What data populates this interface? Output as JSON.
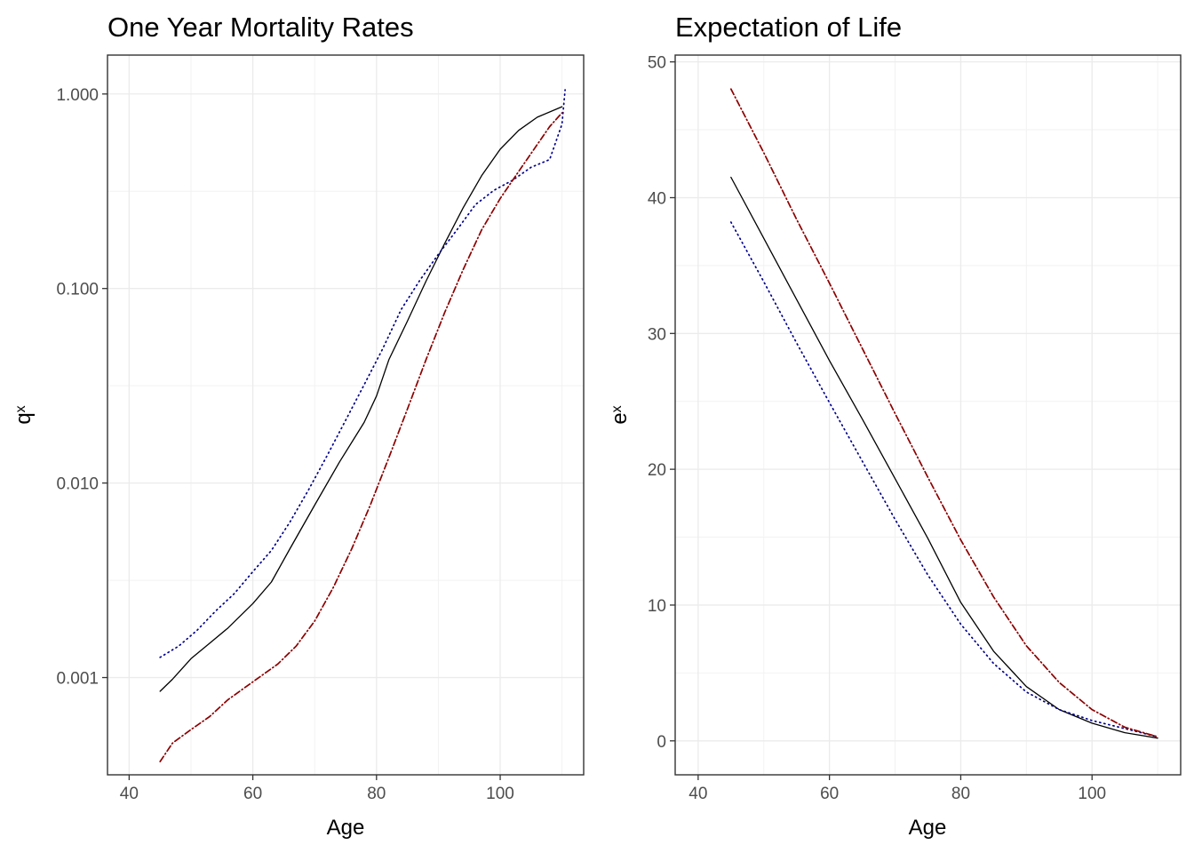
{
  "chart_data": [
    {
      "type": "line",
      "title": "One Year Mortality Rates",
      "xlabel": "Age",
      "ylabel": {
        "base": "q",
        "sub": "x"
      },
      "xlim": [
        36.5,
        113.5
      ],
      "ylim_log10": [
        -3.5,
        0.2
      ],
      "y_scale": "log10",
      "grid": true,
      "x_ticks": [
        {
          "value": 40,
          "label": "40"
        },
        {
          "value": 60,
          "label": "60"
        },
        {
          "value": 80,
          "label": "80"
        },
        {
          "value": 100,
          "label": "100"
        }
      ],
      "y_ticks": [
        {
          "value": 0.001,
          "label": "0.001"
        },
        {
          "value": 0.01,
          "label": "0.010"
        },
        {
          "value": 0.1,
          "label": "0.100"
        },
        {
          "value": 1.0,
          "label": "1.000"
        }
      ],
      "series": [
        {
          "color": "#000000",
          "dash": "solid",
          "points": [
            [
              45,
              0.00085
            ],
            [
              47,
              0.00098
            ],
            [
              50,
              0.00125
            ],
            [
              53,
              0.0015
            ],
            [
              56,
              0.0018
            ],
            [
              60,
              0.0024
            ],
            [
              63,
              0.0031
            ],
            [
              66,
              0.0046
            ],
            [
              70,
              0.0077
            ],
            [
              74,
              0.0128
            ],
            [
              78,
              0.0205
            ],
            [
              80,
              0.028
            ],
            [
              82,
              0.043
            ],
            [
              85,
              0.068
            ],
            [
              88,
              0.109
            ],
            [
              91,
              0.17
            ],
            [
              94,
              0.26
            ],
            [
              97,
              0.38
            ],
            [
              100,
              0.52
            ],
            [
              103,
              0.65
            ],
            [
              106,
              0.76
            ],
            [
              110,
              0.86
            ]
          ]
        },
        {
          "color": "#00008b",
          "dash": "dotted",
          "points": [
            [
              45,
              0.00127
            ],
            [
              48,
              0.00145
            ],
            [
              51,
              0.00175
            ],
            [
              54,
              0.0022
            ],
            [
              57,
              0.0027
            ],
            [
              60,
              0.0035
            ],
            [
              63,
              0.0045
            ],
            [
              66,
              0.0063
            ],
            [
              69,
              0.0092
            ],
            [
              72,
              0.0138
            ],
            [
              75,
              0.021
            ],
            [
              78,
              0.032
            ],
            [
              81,
              0.049
            ],
            [
              84,
              0.078
            ],
            [
              87,
              0.11
            ],
            [
              90,
              0.15
            ],
            [
              93,
              0.2
            ],
            [
              96,
              0.27
            ],
            [
              99,
              0.32
            ],
            [
              102,
              0.36
            ],
            [
              105,
              0.42
            ],
            [
              108,
              0.46
            ],
            [
              110,
              0.7
            ],
            [
              110.5,
              1.05
            ]
          ]
        },
        {
          "color": "#8b0000",
          "dash": "dashdot",
          "points": [
            [
              45,
              0.00037
            ],
            [
              47,
              0.00046
            ],
            [
              50,
              0.00054
            ],
            [
              53,
              0.00063
            ],
            [
              56,
              0.00077
            ],
            [
              60,
              0.00095
            ],
            [
              64,
              0.00117
            ],
            [
              67,
              0.00145
            ],
            [
              70,
              0.00195
            ],
            [
              73,
              0.0029
            ],
            [
              76,
              0.0046
            ],
            [
              79,
              0.0077
            ],
            [
              82,
              0.0135
            ],
            [
              85,
              0.024
            ],
            [
              88,
              0.043
            ],
            [
              91,
              0.075
            ],
            [
              94,
              0.125
            ],
            [
              97,
              0.2
            ],
            [
              100,
              0.29
            ],
            [
              103,
              0.4
            ],
            [
              106,
              0.55
            ],
            [
              108,
              0.68
            ],
            [
              110,
              0.8
            ]
          ]
        }
      ]
    },
    {
      "type": "line",
      "title": "Expectation of Life",
      "xlabel": "Age",
      "ylabel": {
        "base": "e",
        "sub": "x"
      },
      "xlim": [
        36.5,
        113.5
      ],
      "ylim": [
        -2.5,
        50.5
      ],
      "y_scale": "linear",
      "grid": true,
      "x_ticks": [
        {
          "value": 40,
          "label": "40"
        },
        {
          "value": 60,
          "label": "60"
        },
        {
          "value": 80,
          "label": "80"
        },
        {
          "value": 100,
          "label": "100"
        }
      ],
      "y_ticks": [
        {
          "value": 0,
          "label": "0"
        },
        {
          "value": 10,
          "label": "10"
        },
        {
          "value": 20,
          "label": "20"
        },
        {
          "value": 30,
          "label": "30"
        },
        {
          "value": 40,
          "label": "40"
        },
        {
          "value": 50,
          "label": "50"
        }
      ],
      "series": [
        {
          "color": "#000000",
          "dash": "solid",
          "points": [
            [
              45,
              41.5
            ],
            [
              50,
              37.0
            ],
            [
              55,
              32.5
            ],
            [
              60,
              28.0
            ],
            [
              65,
              23.7
            ],
            [
              70,
              19.3
            ],
            [
              75,
              14.9
            ],
            [
              80,
              10.2
            ],
            [
              85,
              6.6
            ],
            [
              90,
              4.0
            ],
            [
              95,
              2.3
            ],
            [
              100,
              1.3
            ],
            [
              105,
              0.6
            ],
            [
              110,
              0.2
            ]
          ]
        },
        {
          "color": "#00008b",
          "dash": "dotted",
          "points": [
            [
              45,
              38.2
            ],
            [
              50,
              33.8
            ],
            [
              55,
              29.3
            ],
            [
              60,
              24.9
            ],
            [
              65,
              20.6
            ],
            [
              70,
              16.3
            ],
            [
              75,
              12.2
            ],
            [
              80,
              8.6
            ],
            [
              85,
              5.7
            ],
            [
              90,
              3.6
            ],
            [
              95,
              2.3
            ],
            [
              100,
              1.5
            ],
            [
              105,
              0.9
            ],
            [
              110,
              0.3
            ]
          ]
        },
        {
          "color": "#8b0000",
          "dash": "dashdot",
          "points": [
            [
              45,
              48.0
            ],
            [
              50,
              43.3
            ],
            [
              55,
              38.4
            ],
            [
              60,
              33.7
            ],
            [
              65,
              28.9
            ],
            [
              70,
              24.1
            ],
            [
              75,
              19.4
            ],
            [
              80,
              14.8
            ],
            [
              85,
              10.6
            ],
            [
              90,
              7.0
            ],
            [
              95,
              4.3
            ],
            [
              100,
              2.3
            ],
            [
              105,
              1.0
            ],
            [
              110,
              0.3
            ]
          ]
        }
      ]
    }
  ]
}
